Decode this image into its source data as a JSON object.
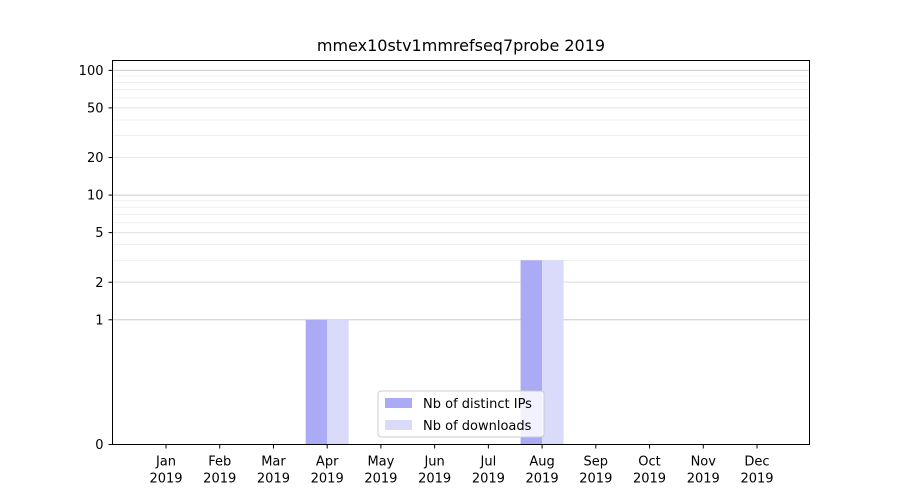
{
  "chart_data": {
    "type": "bar",
    "title": "mmex10stv1mmrefseq7probe 2019",
    "xlabel": "",
    "ylabel": "",
    "y_scale": "symlog",
    "y_ticks": [
      0,
      1,
      2,
      5,
      10,
      20,
      50,
      100
    ],
    "y_tick_labels": [
      "0",
      "1",
      "2",
      "5",
      "10",
      "20",
      "50",
      "100"
    ],
    "ylim": [
      0,
      120
    ],
    "grid": "horizontal",
    "legend_position": "bottom-center",
    "categories": [
      {
        "month": "Jan",
        "year": "2019"
      },
      {
        "month": "Feb",
        "year": "2019"
      },
      {
        "month": "Mar",
        "year": "2019"
      },
      {
        "month": "Apr",
        "year": "2019"
      },
      {
        "month": "May",
        "year": "2019"
      },
      {
        "month": "Jun",
        "year": "2019"
      },
      {
        "month": "Jul",
        "year": "2019"
      },
      {
        "month": "Aug",
        "year": "2019"
      },
      {
        "month": "Sep",
        "year": "2019"
      },
      {
        "month": "Oct",
        "year": "2019"
      },
      {
        "month": "Nov",
        "year": "2019"
      },
      {
        "month": "Dec",
        "year": "2019"
      }
    ],
    "series": [
      {
        "name": "Nb of distinct IPs",
        "color": "#aaaaf5",
        "values": [
          0,
          0,
          0,
          1,
          0,
          0,
          0,
          3,
          0,
          0,
          0,
          0
        ]
      },
      {
        "name": "Nb of downloads",
        "color": "#dadafa",
        "values": [
          0,
          0,
          0,
          1,
          0,
          0,
          0,
          3,
          0,
          0,
          0,
          0
        ]
      }
    ]
  }
}
